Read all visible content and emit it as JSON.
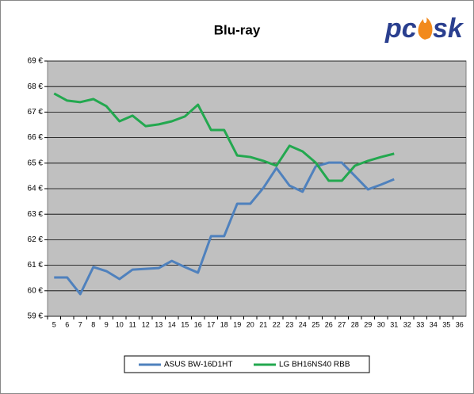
{
  "chart_data": {
    "type": "line",
    "title": "Blu-ray",
    "logo": [
      "pc",
      "sk"
    ],
    "categories": [
      5,
      6,
      7,
      8,
      9,
      10,
      11,
      12,
      13,
      14,
      15,
      16,
      17,
      18,
      19,
      20,
      21,
      22,
      23,
      24,
      25,
      26,
      27,
      28,
      29,
      30,
      31,
      32,
      33,
      34,
      35,
      36
    ],
    "series": [
      {
        "name": "ASUS BW-16D1HT",
        "color": "#4f81bd",
        "values": [
          60.52,
          60.52,
          59.87,
          60.93,
          60.77,
          60.46,
          60.83,
          60.86,
          60.89,
          61.17,
          60.93,
          60.71,
          62.14,
          62.14,
          63.41,
          63.41,
          64.03,
          64.81,
          64.12,
          63.88,
          64.87,
          65.02,
          65.02,
          64.5,
          63.97,
          64.16,
          64.37,
          null,
          null,
          null,
          null,
          null
        ]
      },
      {
        "name": "LG BH16NS40 RBB",
        "color": "#23a84f",
        "values": [
          67.73,
          67.45,
          67.39,
          67.51,
          67.23,
          66.64,
          66.86,
          66.45,
          66.52,
          66.64,
          66.83,
          67.29,
          66.3,
          66.3,
          65.3,
          65.24,
          65.09,
          64.9,
          65.68,
          65.46,
          65.02,
          64.31,
          64.31,
          64.9,
          65.09,
          65.24,
          65.37,
          null,
          null,
          null,
          null,
          null
        ]
      }
    ],
    "ylim": [
      59,
      69
    ],
    "yticks": [
      {
        "value": 59,
        "label": "59 €"
      },
      {
        "value": 60,
        "label": "60 €"
      },
      {
        "value": 61,
        "label": "61 €"
      },
      {
        "value": 62,
        "label": "62 €"
      },
      {
        "value": 63,
        "label": "63 €"
      },
      {
        "value": 64,
        "label": "64 €"
      },
      {
        "value": 65,
        "label": "65 €"
      },
      {
        "value": 66,
        "label": "66 €"
      },
      {
        "value": 67,
        "label": "67 €"
      },
      {
        "value": 68,
        "label": "68 €"
      },
      {
        "value": 69,
        "label": "69 €"
      }
    ],
    "grid": true,
    "legend": "bottom"
  }
}
